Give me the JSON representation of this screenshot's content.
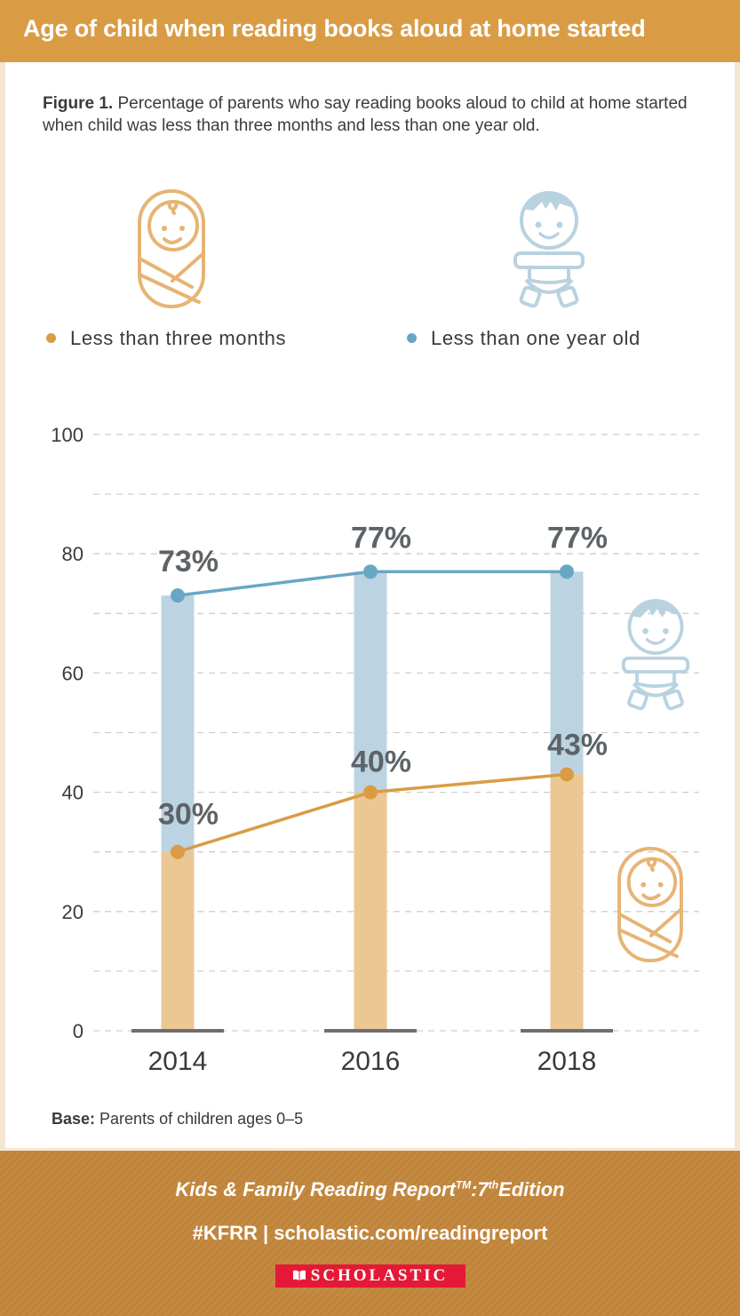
{
  "header": {
    "title": "Age of child when reading books aloud at home started"
  },
  "caption": {
    "label": "Figure 1.",
    "text": " Percentage of parents who say reading books aloud to child at home started when child was less than three months and less than one year old."
  },
  "icons": {
    "top_left": "swaddled-baby-icon",
    "top_right": "baby-icon",
    "side_top": "baby-icon",
    "side_bottom": "swaddled-baby-icon"
  },
  "colors": {
    "header": "#d99c45",
    "orange_line": "#d99c45",
    "orange_bar": "#ebc793",
    "blue_line": "#68a7c4",
    "blue_bar": "#bcd4e2",
    "icon_orange": "#e6b474",
    "icon_blue": "#b9d2e0",
    "label": "#5d6366",
    "footer": "#c08640",
    "logo": "#e51937"
  },
  "chart_data": {
    "type": "bar",
    "title": "Age of child when reading books aloud at home started",
    "categories": [
      "2014",
      "2016",
      "2018"
    ],
    "series": [
      {
        "name": "Less than one year old",
        "values": [
          73,
          77,
          77
        ],
        "labels": [
          "73%",
          "77%",
          "77%"
        ],
        "render": "bar+line"
      },
      {
        "name": "Less than three months",
        "values": [
          30,
          40,
          43
        ],
        "labels": [
          "30%",
          "40%",
          "43%"
        ],
        "render": "bar+line"
      }
    ],
    "legend": [
      "Less than three months",
      "Less than one year old"
    ],
    "legend_position": "top",
    "yticks": [
      "0",
      "20",
      "40",
      "60",
      "80",
      "100"
    ],
    "ylim": [
      0,
      100
    ],
    "grid": true,
    "xlabel": "",
    "ylabel": ""
  },
  "base": {
    "label": "Base:",
    "text": " Parents of children ages 0–5"
  },
  "footer": {
    "report": "Kids & Family Reading Report",
    "tm": "TM",
    "colon_seven": ":7",
    "th": "th",
    "edition": "Edition",
    "links": "#KFRR | scholastic.com/readingreport",
    "logo_text": "SCHOLASTIC"
  }
}
